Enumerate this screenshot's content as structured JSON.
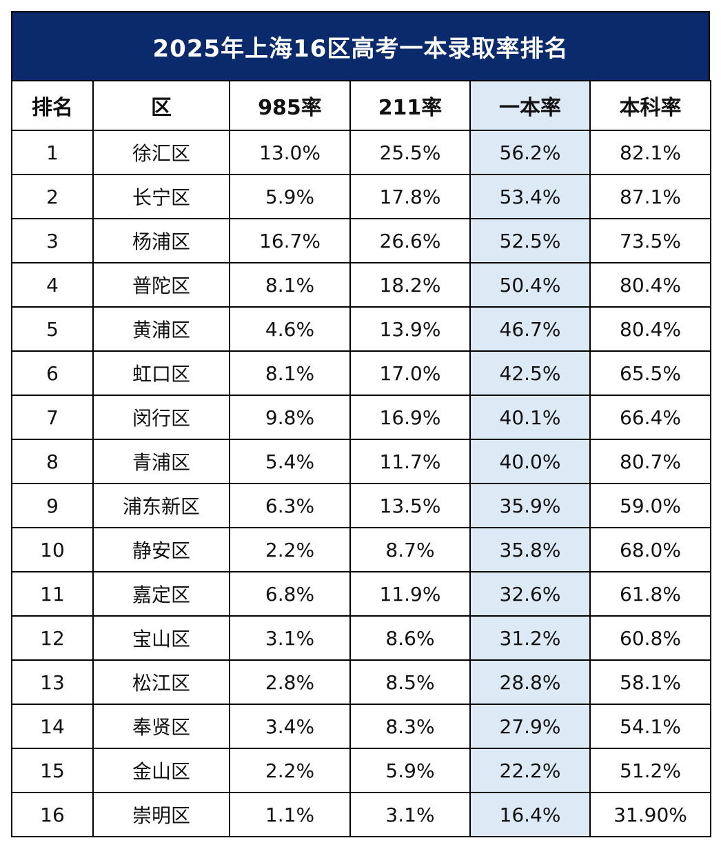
{
  "title": "2025年上海16区高考一本录取率排名",
  "headers": [
    "排名",
    "区",
    "985率",
    "211率",
    "一本率",
    "本科率"
  ],
  "rows": [
    [
      "1",
      "徐汇区",
      "13.0%",
      "25.5%",
      "56.2%",
      "82.1%"
    ],
    [
      "2",
      "长宁区",
      "5.9%",
      "17.8%",
      "53.4%",
      "87.1%"
    ],
    [
      "3",
      "杨浦区",
      "16.7%",
      "26.6%",
      "52.5%",
      "73.5%"
    ],
    [
      "4",
      "普陀区",
      "8.1%",
      "18.2%",
      "50.4%",
      "80.4%"
    ],
    [
      "5",
      "黄浦区",
      "4.6%",
      "13.9%",
      "46.7%",
      "80.4%"
    ],
    [
      "6",
      "虹口区",
      "8.1%",
      "17.0%",
      "42.5%",
      "65.5%"
    ],
    [
      "7",
      "闵行区",
      "9.8%",
      "16.9%",
      "40.1%",
      "66.4%"
    ],
    [
      "8",
      "青浦区",
      "5.4%",
      "11.7%",
      "40.0%",
      "80.7%"
    ],
    [
      "9",
      "浦东新区",
      "6.3%",
      "13.5%",
      "35.9%",
      "59.0%"
    ],
    [
      "10",
      "静安区",
      "2.2%",
      "8.7%",
      "35.8%",
      "68.0%"
    ],
    [
      "11",
      "嘉定区",
      "6.8%",
      "11.9%",
      "32.6%",
      "61.8%"
    ],
    [
      "12",
      "宝山区",
      "3.1%",
      "8.6%",
      "31.2%",
      "60.8%"
    ],
    [
      "13",
      "松江区",
      "2.8%",
      "8.5%",
      "28.8%",
      "58.1%"
    ],
    [
      "14",
      "奉贤区",
      "3.4%",
      "8.3%",
      "27.9%",
      "54.1%"
    ],
    [
      "15",
      "金山区",
      "2.2%",
      "5.9%",
      "22.2%",
      "51.2%"
    ],
    [
      "16",
      "崇明区",
      "1.1%",
      "3.1%",
      "16.4%",
      "31.90%"
    ]
  ],
  "colors": {
    "title_bg": "#0a2a6b",
    "title_text": "#ffffff",
    "highlight_column": "#dde9f5"
  }
}
